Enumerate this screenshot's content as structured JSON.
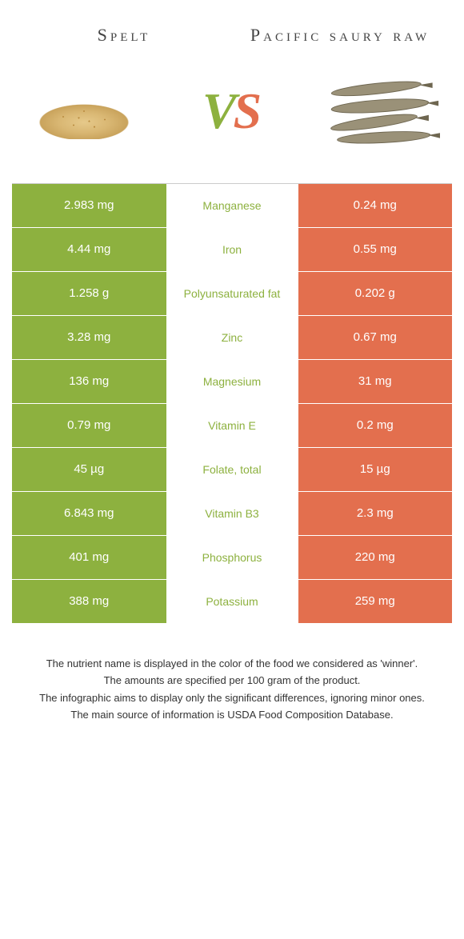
{
  "header": {
    "left_title": "Spelt",
    "right_title": "Pacific saury raw"
  },
  "vs": {
    "v": "V",
    "s": "S"
  },
  "colors": {
    "left": "#8db13f",
    "right": "#e36f4e",
    "left_text": "#8db13f",
    "right_text": "#e36f4e"
  },
  "rows": [
    {
      "left": "2.983 mg",
      "nutrient": "Manganese",
      "right": "0.24 mg",
      "winner": "left"
    },
    {
      "left": "4.44 mg",
      "nutrient": "Iron",
      "right": "0.55 mg",
      "winner": "left"
    },
    {
      "left": "1.258 g",
      "nutrient": "Polyunsaturated fat",
      "right": "0.202 g",
      "winner": "left"
    },
    {
      "left": "3.28 mg",
      "nutrient": "Zinc",
      "right": "0.67 mg",
      "winner": "left"
    },
    {
      "left": "136 mg",
      "nutrient": "Magnesium",
      "right": "31 mg",
      "winner": "left"
    },
    {
      "left": "0.79 mg",
      "nutrient": "Vitamin E",
      "right": "0.2 mg",
      "winner": "left"
    },
    {
      "left": "45 µg",
      "nutrient": "Folate, total",
      "right": "15 µg",
      "winner": "left"
    },
    {
      "left": "6.843 mg",
      "nutrient": "Vitamin B3",
      "right": "2.3 mg",
      "winner": "left"
    },
    {
      "left": "401 mg",
      "nutrient": "Phosphorus",
      "right": "220 mg",
      "winner": "left"
    },
    {
      "left": "388 mg",
      "nutrient": "Potassium",
      "right": "259 mg",
      "winner": "left"
    }
  ],
  "footer": {
    "l1": "The nutrient name is displayed in the color of the food we considered as 'winner'.",
    "l2": "The amounts are specified per 100 gram of the product.",
    "l3": "The infographic aims to display only the significant differences, ignoring minor ones.",
    "l4": "The main source of information is USDA Food Composition Database."
  }
}
